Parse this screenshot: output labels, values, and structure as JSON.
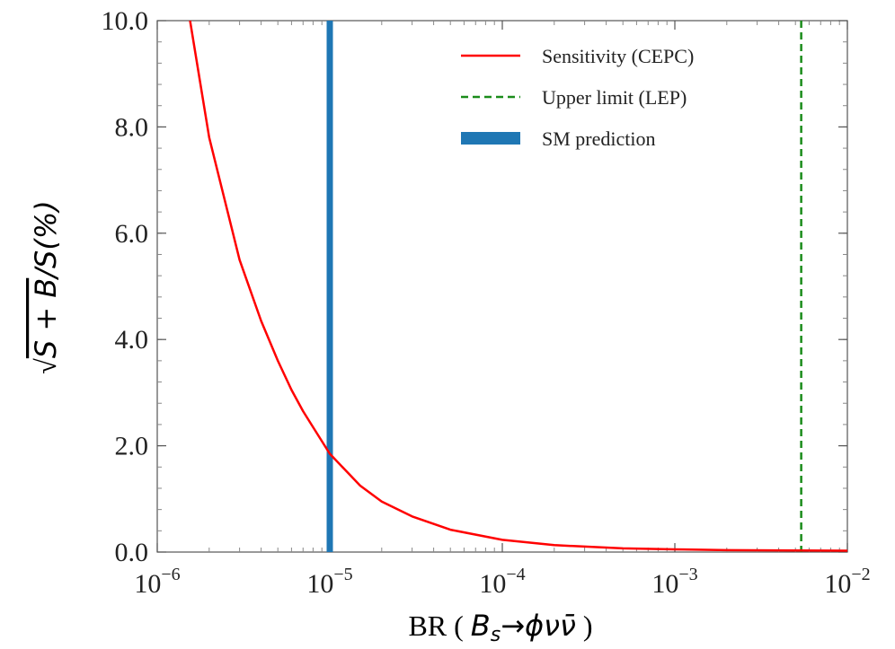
{
  "chart_data": {
    "type": "line",
    "xscale": "log",
    "xlim": [
      1e-06,
      0.01
    ],
    "ylim": [
      0,
      10
    ],
    "x_ticks": [
      {
        "base": "10",
        "exp": "−6"
      },
      {
        "base": "10",
        "exp": "−5"
      },
      {
        "base": "10",
        "exp": "−4"
      },
      {
        "base": "10",
        "exp": "−3"
      },
      {
        "base": "10",
        "exp": "−2"
      }
    ],
    "y_ticks": [
      "0.0",
      "2.0",
      "4.0",
      "6.0",
      "8.0",
      "10.0"
    ],
    "xlabel": {
      "prefix": "BR",
      "math": "B",
      "sub": "s",
      "rest": "→ϕνν̄"
    },
    "ylabel": {
      "sqrt": "√",
      "math": "S + B",
      "rest": "/S(%)"
    },
    "series": [
      {
        "name": "Sensitivity (CEPC)",
        "kind": "line",
        "color": "#ff0000",
        "style": "solid",
        "x": [
          1.55e-06,
          2e-06,
          3e-06,
          4e-06,
          5e-06,
          6e-06,
          7e-06,
          8e-06,
          1e-05,
          1.5e-05,
          2e-05,
          3e-05,
          5e-05,
          0.0001,
          0.0002,
          0.0005,
          0.001,
          0.002,
          0.005,
          0.01
        ],
        "y": [
          10.0,
          7.8,
          5.5,
          4.35,
          3.6,
          3.05,
          2.65,
          2.35,
          1.85,
          1.25,
          0.95,
          0.67,
          0.42,
          0.23,
          0.13,
          0.07,
          0.05,
          0.035,
          0.03,
          0.025
        ]
      },
      {
        "name": "Upper limit (LEP)",
        "kind": "vline",
        "color": "#1a8c1a",
        "style": "dashed",
        "x": 0.0054
      },
      {
        "name": "SM prediction",
        "kind": "vline",
        "color": "#1f77b4",
        "style": "thick",
        "x": 1e-05
      }
    ],
    "legend": "top-right",
    "grid": false
  }
}
